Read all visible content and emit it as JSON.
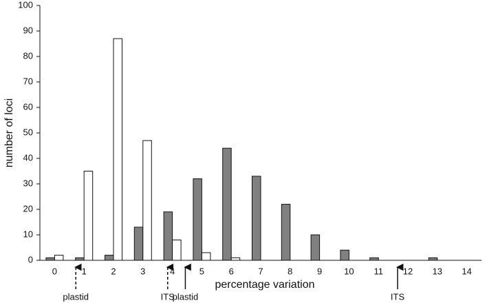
{
  "chart_data": {
    "type": "bar",
    "xlabel": "percentage variation",
    "ylabel": "number of loci",
    "categories": [
      "0",
      "1",
      "2",
      "3",
      "4",
      "5",
      "6",
      "7",
      "8",
      "9",
      "10",
      "11",
      "12",
      "13",
      "14"
    ],
    "series": [
      {
        "color": "#808080",
        "values": [
          1,
          1,
          2,
          13,
          19,
          32,
          44,
          33,
          22,
          10,
          4,
          1,
          0,
          1,
          0
        ]
      },
      {
        "color": "#ffffff",
        "values": [
          2,
          35,
          87,
          47,
          8,
          3,
          1,
          0,
          0,
          0,
          0,
          0,
          0,
          0,
          0
        ]
      }
    ],
    "ylim": [
      0,
      100
    ],
    "yticks": [
      0,
      10,
      20,
      30,
      40,
      50,
      60,
      70,
      80,
      90,
      100
    ],
    "annotations": [
      {
        "text": "plastid",
        "x": 0.72,
        "style": "dashed"
      },
      {
        "text": "ITS",
        "x": 3.84,
        "style": "dashed"
      },
      {
        "text": "plastid",
        "x": 4.44,
        "style": "solid"
      },
      {
        "text": "ITS",
        "x": 11.65,
        "style": "solid"
      }
    ]
  }
}
